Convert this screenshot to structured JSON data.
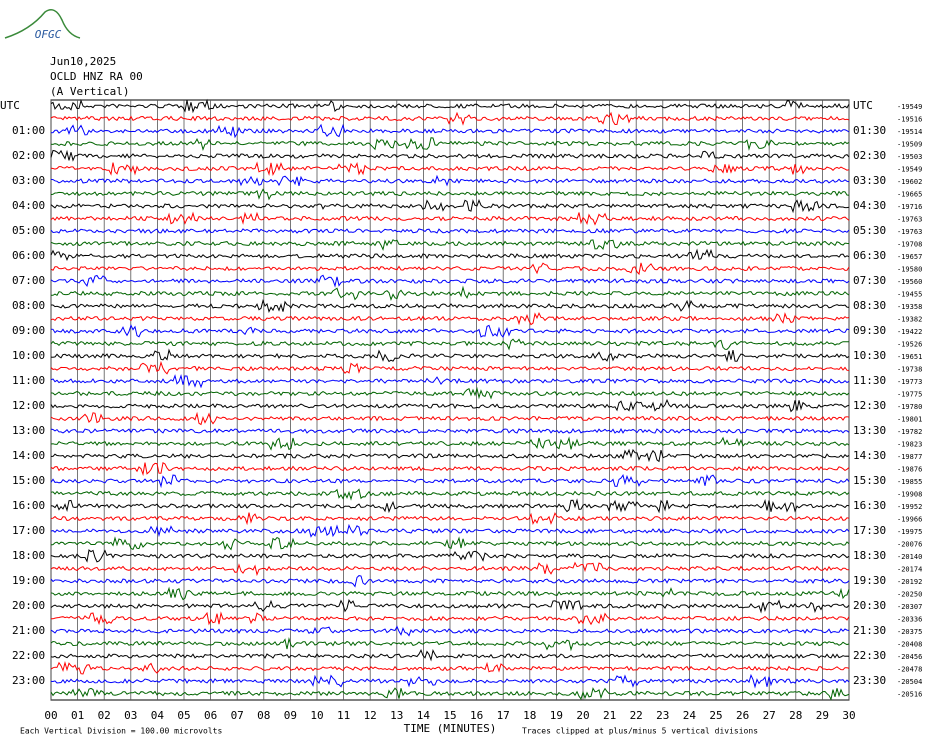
{
  "chart_data": {
    "type": "helicorder",
    "logo": "OFGC",
    "title_lines": [
      "Jun10,2025",
      "OCLD HNZ RA 00",
      "(A Vertical)"
    ],
    "left_labels": [
      "UTC",
      "01:00",
      "02:00",
      "03:00",
      "04:00",
      "05:00",
      "06:00",
      "07:00",
      "08:00",
      "09:00",
      "10:00",
      "11:00",
      "12:00",
      "13:00",
      "14:00",
      "15:00",
      "16:00",
      "17:00",
      "18:00",
      "19:00",
      "20:00",
      "21:00",
      "22:00",
      "23:00"
    ],
    "right_labels": [
      "UTC",
      "01:30",
      "02:30",
      "03:30",
      "04:30",
      "05:30",
      "06:30",
      "07:30",
      "08:30",
      "09:30",
      "10:30",
      "11:30",
      "12:30",
      "13:30",
      "14:30",
      "15:30",
      "16:30",
      "17:30",
      "18:30",
      "19:30",
      "20:30",
      "21:30",
      "22:30",
      "23:30"
    ],
    "offsets": [
      -19549,
      -19516,
      -19514,
      -19509,
      -19503,
      -19549,
      -19602,
      -19665,
      -19716,
      -19763,
      -19763,
      -19708,
      -19657,
      -19580,
      -19560,
      -19455,
      -19358,
      -19382,
      -19422,
      -19526,
      -19651,
      -19738,
      -19773,
      -19775,
      -19780,
      -19801,
      -19782,
      -19823,
      -19877,
      -19876,
      -19855,
      -19908,
      -19952,
      -19966,
      -19975,
      -20076,
      -20140,
      -20174,
      -20192,
      -20250,
      -20307,
      -20336,
      -20375,
      -20408,
      -20456,
      -20478,
      -20504,
      -20516
    ],
    "colors": [
      "#000000",
      "#ff0000",
      "#0000ff",
      "#006400"
    ],
    "xlim": [
      0,
      30
    ],
    "xticks": [
      {
        "value": 0,
        "label": "00"
      },
      {
        "value": 1,
        "label": "01"
      },
      {
        "value": 2,
        "label": "02"
      },
      {
        "value": 3,
        "label": "03"
      },
      {
        "value": 4,
        "label": "04"
      },
      {
        "value": 5,
        "label": "05"
      },
      {
        "value": 6,
        "label": "06"
      },
      {
        "value": 7,
        "label": "07"
      },
      {
        "value": 8,
        "label": "08"
      },
      {
        "value": 9,
        "label": "09"
      },
      10,
      11,
      12,
      13,
      14,
      15,
      16,
      17,
      18,
      19,
      20,
      21,
      22,
      23,
      24,
      25,
      26,
      27,
      28,
      29,
      30
    ],
    "x_label": "TIME (MINUTES)",
    "footer_left": "Each Vertical Division =  100.00 microvolts",
    "footer_right": "Traces clipped at plus/minus 5 vertical divisions"
  }
}
